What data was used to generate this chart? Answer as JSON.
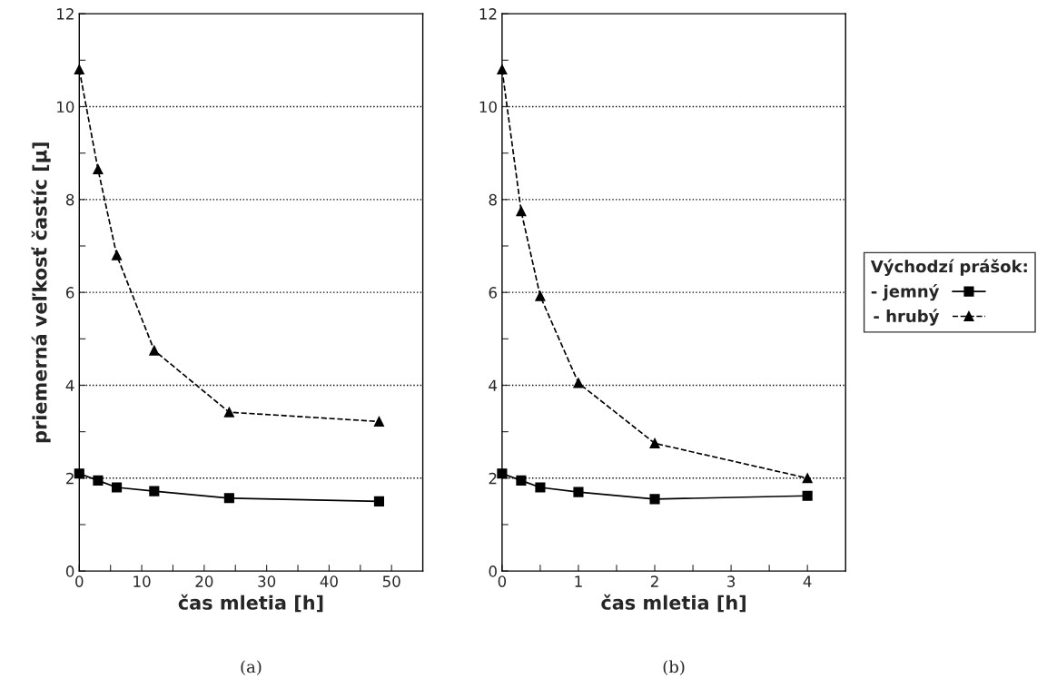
{
  "chart_data": [
    {
      "type": "line",
      "xlabel": "čas mletia [h]",
      "ylabel": "priemerná veľkosť častíc [µ]",
      "annotations": [
        "(a)"
      ],
      "xlim": [
        0,
        55
      ],
      "xticks": [
        0,
        {
          "value": 5,
          "label": null
        },
        10,
        {
          "value": 15,
          "label": null
        },
        20,
        {
          "value": 25,
          "label": null
        },
        30,
        {
          "value": 35,
          "label": null
        },
        40,
        {
          "value": 45,
          "label": null
        },
        50
      ],
      "ylim": [
        0,
        12
      ],
      "yticks": [
        0,
        {
          "value": 1,
          "label": null
        },
        2,
        {
          "value": 3,
          "label": null
        },
        4,
        {
          "value": 5,
          "label": null
        },
        6,
        {
          "value": 7,
          "label": null
        },
        8,
        {
          "value": 9,
          "label": null
        },
        10,
        {
          "value": 11,
          "label": null
        },
        12
      ],
      "grid": "y",
      "legend": false,
      "series": [
        {
          "color": "#000000",
          "marker": "square",
          "line_style": "solid",
          "x": [
            0,
            3,
            6,
            12,
            24,
            48
          ],
          "values": [
            2.1,
            1.95,
            1.8,
            1.72,
            1.57,
            1.5
          ]
        },
        {
          "color": "#000000",
          "marker": "triangle",
          "line_style": "dashed",
          "x": [
            0,
            3,
            6,
            12,
            24,
            48
          ],
          "values": [
            10.8,
            8.65,
            6.8,
            4.75,
            3.42,
            3.22
          ]
        }
      ]
    },
    {
      "type": "line",
      "xlabel": "čas mletia [h]",
      "annotations": [
        "(b)"
      ],
      "legend_title": "Východzí prášok:",
      "xlim": [
        0,
        4.5
      ],
      "xticks": [
        0,
        {
          "value": 0.5,
          "label": null
        },
        1,
        {
          "value": 1.5,
          "label": null
        },
        2,
        {
          "value": 2.5,
          "label": null
        },
        3,
        {
          "value": 3.5,
          "label": null
        },
        4
      ],
      "ylim": [
        0,
        12
      ],
      "yticks": [
        0,
        {
          "value": 1,
          "label": null
        },
        2,
        {
          "value": 3,
          "label": null
        },
        4,
        {
          "value": 5,
          "label": null
        },
        6,
        {
          "value": 7,
          "label": null
        },
        8,
        {
          "value": 9,
          "label": null
        },
        10,
        {
          "value": 11,
          "label": null
        },
        12
      ],
      "grid": "y",
      "legend": "right",
      "series": [
        {
          "name": "- jemný",
          "color": "#000000",
          "marker": "square",
          "line_style": "solid",
          "x": [
            0,
            0.25,
            0.5,
            1,
            2,
            4
          ],
          "values": [
            2.1,
            1.95,
            1.8,
            1.7,
            1.55,
            1.62
          ]
        },
        {
          "name": "- hrubý",
          "color": "#000000",
          "marker": "triangle",
          "line_style": "dashed",
          "x": [
            0,
            0.25,
            0.5,
            1,
            2,
            4
          ],
          "values": [
            10.8,
            7.75,
            5.92,
            4.05,
            2.75,
            2.0
          ]
        }
      ]
    }
  ]
}
